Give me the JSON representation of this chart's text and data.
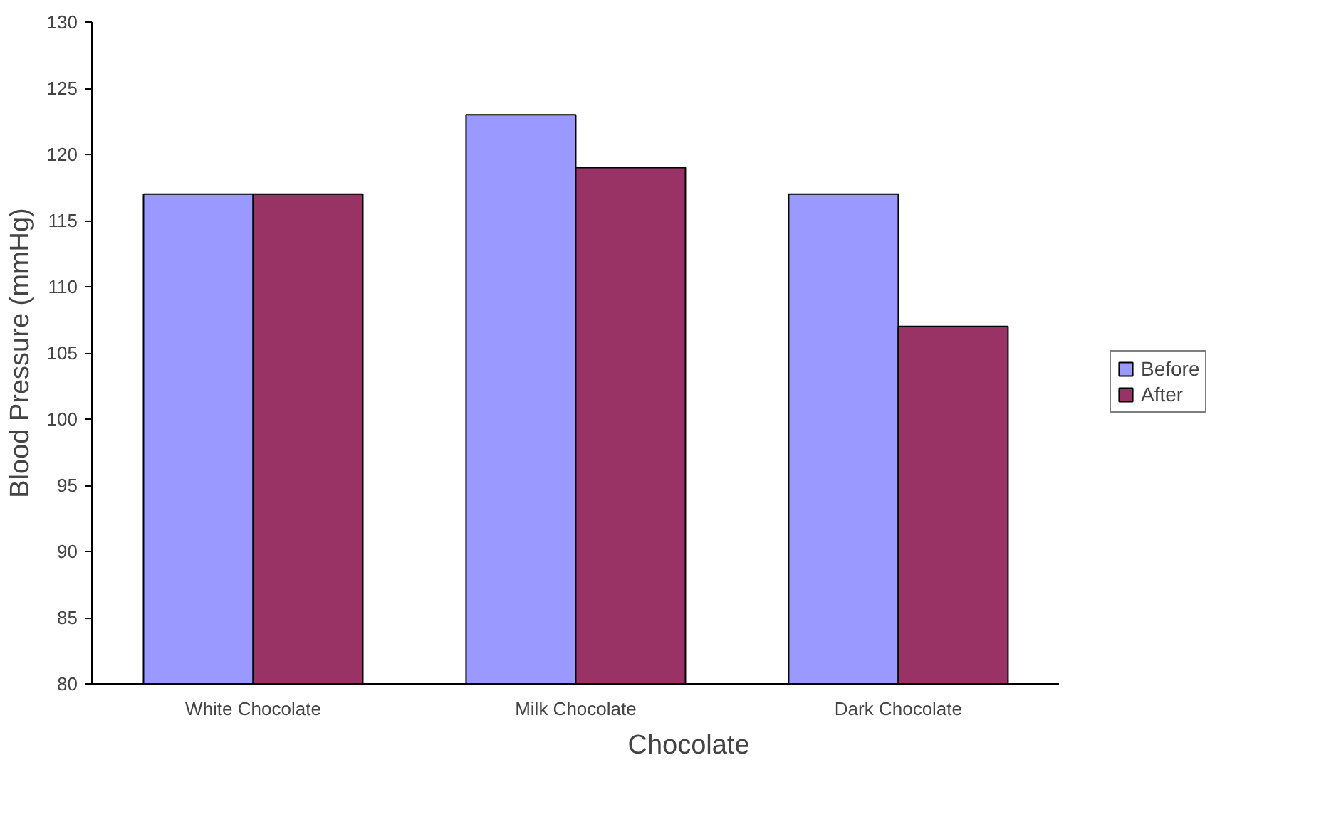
{
  "chart_data": {
    "type": "bar",
    "xlabel": "Chocolate",
    "ylabel": "Blood Pressure (mmHg)",
    "categories": [
      "White Chocolate",
      "Milk Chocolate",
      "Dark Chocolate"
    ],
    "series": [
      {
        "name": "Before",
        "color": "#9999ff",
        "values": [
          117,
          123,
          117
        ]
      },
      {
        "name": "After",
        "color": "#993366",
        "values": [
          117,
          119,
          107
        ]
      }
    ],
    "ylim": [
      80,
      130
    ],
    "yticks": [
      80,
      85,
      90,
      95,
      100,
      105,
      110,
      115,
      120,
      125,
      130
    ],
    "grid": false,
    "legend": "right"
  }
}
